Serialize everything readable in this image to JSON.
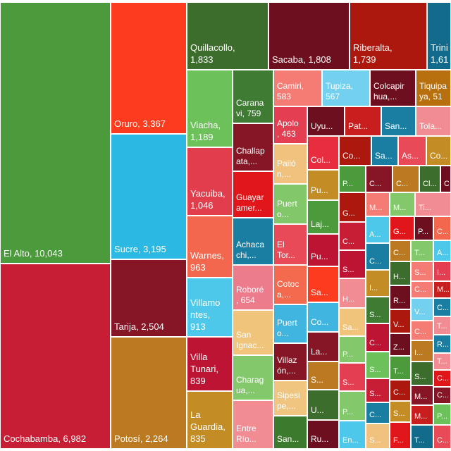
{
  "chart_data": {
    "type": "treemap",
    "items": [
      {
        "label": "El Alto, 10,043",
        "value": 10043,
        "color": "#4b9a3c"
      },
      {
        "label": "Cochabamba, 6,982",
        "value": 6982,
        "color": "#c81e35"
      },
      {
        "label": "Oruro, 3,367",
        "value": 3367,
        "color": "#fd3b1f"
      },
      {
        "label": "Sucre, 3,195",
        "value": 3195,
        "color": "#2bb8e2"
      },
      {
        "label": "Tarija, 2,504",
        "value": 2504,
        "color": "#861525"
      },
      {
        "label": "Potosí, 2,264",
        "value": 2264,
        "color": "#bb7a22"
      },
      {
        "label": "Quillacollo,\n1,833",
        "value": 1833,
        "color": "#3d6d2c"
      },
      {
        "label": "Sacaba, 1,808",
        "value": 1808,
        "color": "#6d0f1e"
      },
      {
        "label": "Riberalta,\n1,739",
        "value": 1739,
        "color": "#ac180d"
      },
      {
        "label": "Trini\n1,61",
        "value": 1610,
        "color": "#126b8a"
      },
      {
        "label": "Viacha,\n1,189",
        "value": 1189,
        "color": "#6cc15a"
      },
      {
        "label": "Yacuiba,\n1,046",
        "value": 1046,
        "color": "#e23d4c"
      },
      {
        "label": "Warnes,\n963",
        "value": 963,
        "color": "#f2674e"
      },
      {
        "label": "Villamo\nntes,\n913",
        "value": 913,
        "color": "#4dc8ea"
      },
      {
        "label": "Villa\nTunari,\n839",
        "value": 839,
        "color": "#bd1433"
      },
      {
        "label": "La\nGuardia,\n835",
        "value": 835,
        "color": "#c48c24"
      },
      {
        "label": "Carana\nvi, 759",
        "value": 759,
        "color": "#3f7b33"
      },
      {
        "label": "Challap\nata,...",
        "value": 700,
        "color": "#861525"
      },
      {
        "label": "Guayar\namer...",
        "value": 690,
        "color": "#e0161a"
      },
      {
        "label": "Achaca\nchi,...",
        "value": 680,
        "color": "#1a7ea3"
      },
      {
        "label": "Roboré\n, 654",
        "value": 654,
        "color": "#ec7b8c"
      },
      {
        "label": "San\nIgnac...",
        "value": 640,
        "color": "#f0c47b"
      },
      {
        "label": "Charag\nua,...",
        "value": 630,
        "color": "#83c86b"
      },
      {
        "label": "Entre\nRío...",
        "value": 620,
        "color": "#f18c93"
      },
      {
        "label": "Camiri,\n583",
        "value": 583,
        "color": "#f47c74"
      },
      {
        "label": "Tupiza,\n567",
        "value": 567,
        "color": "#73d0ee"
      },
      {
        "label": "Colcapir\nhua,...",
        "value": 550,
        "color": "#6d0f1e"
      },
      {
        "label": "Tiquipa\nya, 51",
        "value": 518,
        "color": "#b8700f"
      },
      {
        "label": "Apolo\n, 463",
        "value": 463,
        "color": "#e33e52"
      },
      {
        "label": "Pailó\nn,...",
        "value": 450,
        "color": "#f1c27d"
      },
      {
        "label": "Puert\no...",
        "value": 440,
        "color": "#82c76a"
      },
      {
        "label": "El\nTor...",
        "value": 430,
        "color": "#e84a57"
      },
      {
        "label": "Cotoc\na,...",
        "value": 420,
        "color": "#f36a4f"
      },
      {
        "label": "Puert\no...",
        "value": 410,
        "color": "#3fb5e0"
      },
      {
        "label": "Villaz\nón,...",
        "value": 400,
        "color": "#861525"
      },
      {
        "label": "Sipesi\npe,...",
        "value": 390,
        "color": "#f0c580"
      },
      {
        "label": "San...",
        "value": 380,
        "color": "#3c7a2e"
      },
      {
        "label": "Uyu...",
        "value": 330,
        "color": "#6d0f1e"
      },
      {
        "label": "Pat...",
        "value": 320,
        "color": "#c81e1e"
      },
      {
        "label": "San...",
        "value": 310,
        "color": "#1a7ea3"
      },
      {
        "label": "Tola...",
        "value": 300,
        "color": "#f18c93"
      },
      {
        "label": "Col...",
        "value": 290,
        "color": "#e82d3f"
      },
      {
        "label": "Co...",
        "value": 280,
        "color": "#ac180d"
      },
      {
        "label": "Sa...",
        "value": 275,
        "color": "#1a7ea3"
      },
      {
        "label": "As...",
        "value": 270,
        "color": "#e84a57"
      },
      {
        "label": "Co...",
        "value": 265,
        "color": "#c48c24"
      },
      {
        "label": "Pu...",
        "value": 260,
        "color": "#c48c24"
      },
      {
        "label": "Laj...",
        "value": 255,
        "color": "#4b9a3c"
      },
      {
        "label": "Pu...",
        "value": 250,
        "color": "#bd1433"
      },
      {
        "label": "Sa...",
        "value": 245,
        "color": "#fd3b1f"
      },
      {
        "label": "Co...",
        "value": 240,
        "color": "#3fb5e0"
      },
      {
        "label": "La...",
        "value": 235,
        "color": "#861525"
      },
      {
        "label": "S...",
        "value": 230,
        "color": "#bb7a22"
      },
      {
        "label": "U...",
        "value": 225,
        "color": "#3d6d2c"
      },
      {
        "label": "Ru...",
        "value": 220,
        "color": "#6d0f1e"
      }
    ]
  },
  "small_tiles": [
    {
      "label": "P...",
      "color": "#4b9a3c"
    },
    {
      "label": "C...",
      "color": "#861525"
    },
    {
      "label": "C...",
      "color": "#bb7a22"
    },
    {
      "label": "Cl...",
      "color": "#3d6d2c"
    },
    {
      "label": "C...",
      "color": "#6d0f1e"
    },
    {
      "label": "G...",
      "color": "#ac180d"
    },
    {
      "label": "M...",
      "color": "#f47c74"
    },
    {
      "label": "M...",
      "color": "#83c86b"
    },
    {
      "label": "Ti...",
      "color": "#f18c93"
    },
    {
      "label": "C...",
      "color": "#c81e35"
    },
    {
      "label": "G...",
      "color": "#e0161a"
    },
    {
      "label": "A...",
      "color": "#4dc8ea"
    },
    {
      "label": "P...",
      "color": "#6d0f1e"
    },
    {
      "label": "C...",
      "color": "#f2674e"
    },
    {
      "label": "A...",
      "color": "#4dc8ea"
    },
    {
      "label": "C...",
      "color": "#1a7ea3"
    },
    {
      "label": "S...",
      "color": "#bd1433"
    },
    {
      "label": "C...",
      "color": "#bb7a22"
    },
    {
      "label": "T...",
      "color": "#83c86b"
    },
    {
      "label": "I...",
      "color": "#e33e52"
    },
    {
      "label": "H...",
      "color": "#f18c93"
    },
    {
      "label": "I...",
      "color": "#c48c24"
    },
    {
      "label": "H...",
      "color": "#3d6d2c"
    },
    {
      "label": "S...",
      "color": "#f47c74"
    },
    {
      "label": "M...",
      "color": "#c81e1e"
    },
    {
      "label": "Sa...",
      "color": "#f0c47b"
    },
    {
      "label": "S...",
      "color": "#3f7b33"
    },
    {
      "label": "R...",
      "color": "#6d0f1e"
    },
    {
      "label": "C...",
      "color": "#f47c74"
    },
    {
      "label": "C...",
      "color": "#1a7ea3"
    },
    {
      "label": "P...",
      "color": "#83c86b"
    },
    {
      "label": "C...",
      "color": "#bd1433"
    },
    {
      "label": "V...",
      "color": "#ac180d"
    },
    {
      "label": "V...",
      "color": "#73d0ee"
    },
    {
      "label": "T...",
      "color": "#f18c93"
    },
    {
      "label": "S...",
      "color": "#e33e52"
    },
    {
      "label": "S...",
      "color": "#6cc15a"
    },
    {
      "label": "Z...",
      "color": "#6d0f1e"
    },
    {
      "label": "C...",
      "color": "#f47c74"
    },
    {
      "label": "R...",
      "color": "#1a7ea3"
    },
    {
      "label": "I...",
      "color": "#bb7a22"
    },
    {
      "label": "T...",
      "color": "#4b9a3c"
    },
    {
      "label": "S...",
      "color": "#c81e35"
    },
    {
      "label": "T...",
      "color": "#f18c93"
    },
    {
      "label": "C...",
      "color": "#e0161a"
    },
    {
      "label": "S...",
      "color": "#3d6d2c"
    },
    {
      "label": "C...",
      "color": "#ac180d"
    },
    {
      "label": "C...",
      "color": "#1a7ea3"
    },
    {
      "label": "M...",
      "color": "#861525"
    },
    {
      "label": "S...",
      "color": "#c48c24"
    },
    {
      "label": "P...",
      "color": "#83c86b"
    },
    {
      "label": "M...",
      "color": "#c81e1e"
    },
    {
      "label": "C...",
      "color": "#861525"
    },
    {
      "label": "F...",
      "color": "#e0161a"
    },
    {
      "label": "P...",
      "color": "#6cc15a"
    },
    {
      "label": "T...",
      "color": "#126b8a"
    },
    {
      "label": "En...",
      "color": "#4dc8ea"
    },
    {
      "label": "S...",
      "color": "#f1c27d"
    },
    {
      "label": "C...",
      "color": "#e84a57"
    }
  ]
}
